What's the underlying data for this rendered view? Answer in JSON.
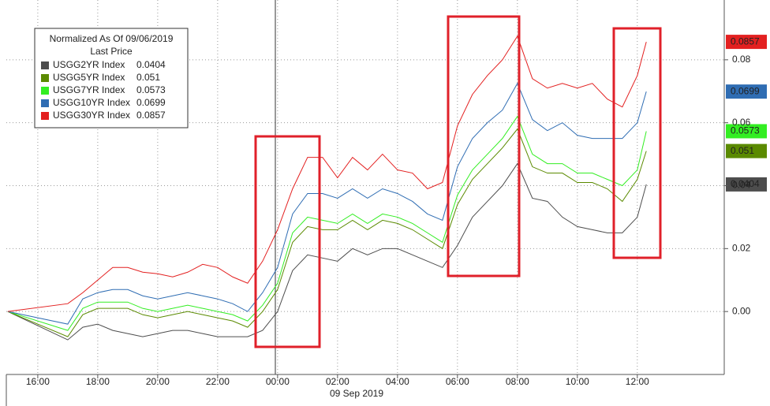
{
  "chart_data": {
    "type": "line",
    "legend_title": "Normalized As Of 09/06/2019",
    "legend_subtitle": "Last Price",
    "date_label": "09 Sep 2019",
    "x": [
      -1,
      1,
      1.5,
      2,
      2.5,
      3,
      3.5,
      4,
      4.5,
      5,
      5.5,
      6,
      6.5,
      7,
      7.5,
      8,
      8.5,
      9,
      9.5,
      10,
      10.5,
      11,
      11.5,
      12,
      12.5,
      13,
      13.5,
      14,
      14.5,
      15,
      15.5,
      16,
      16.5,
      17,
      17.5,
      18,
      18.5,
      19,
      19.5,
      20,
      20.3
    ],
    "series": [
      {
        "name": "USGG2YR Index",
        "color": "#4d4d4d",
        "tag_text": "#ffffff",
        "values": [
          0,
          -0.009,
          -0.005,
          -0.004,
          -0.006,
          -0.007,
          -0.008,
          -0.007,
          -0.006,
          -0.006,
          -0.007,
          -0.008,
          -0.008,
          -0.008,
          -0.006,
          0.0,
          0.013,
          0.018,
          0.017,
          0.016,
          0.02,
          0.018,
          0.02,
          0.02,
          0.018,
          0.016,
          0.014,
          0.021,
          0.03,
          0.035,
          0.04,
          0.047,
          0.036,
          0.035,
          0.03,
          0.027,
          0.026,
          0.025,
          0.025,
          0.03,
          0.0404
        ]
      },
      {
        "name": "USGG5YR Index",
        "color": "#5a8a00",
        "tag_text": "#ffffff",
        "values": [
          0,
          -0.008,
          -0.001,
          0.001,
          0.001,
          0.001,
          -0.001,
          -0.002,
          -0.001,
          0.0,
          -0.001,
          -0.002,
          -0.003,
          -0.005,
          0.0,
          0.007,
          0.022,
          0.027,
          0.026,
          0.026,
          0.029,
          0.026,
          0.029,
          0.028,
          0.026,
          0.023,
          0.02,
          0.034,
          0.042,
          0.047,
          0.052,
          0.058,
          0.046,
          0.044,
          0.044,
          0.041,
          0.041,
          0.039,
          0.035,
          0.042,
          0.051
        ]
      },
      {
        "name": "USGG7YR Index",
        "color": "#33ee22",
        "tag_text": "#000000",
        "values": [
          0,
          -0.006,
          0.001,
          0.003,
          0.003,
          0.003,
          0.001,
          0.0,
          0.001,
          0.002,
          0.001,
          0.0,
          -0.001,
          -0.003,
          0.002,
          0.009,
          0.025,
          0.03,
          0.029,
          0.028,
          0.031,
          0.028,
          0.031,
          0.03,
          0.028,
          0.025,
          0.022,
          0.037,
          0.045,
          0.05,
          0.055,
          0.062,
          0.05,
          0.047,
          0.047,
          0.044,
          0.044,
          0.042,
          0.04,
          0.045,
          0.0573
        ]
      },
      {
        "name": "USGG10YR Index",
        "color": "#2f6db3",
        "tag_text": "#ffffff",
        "values": [
          0,
          -0.004,
          0.004,
          0.006,
          0.007,
          0.007,
          0.005,
          0.004,
          0.005,
          0.006,
          0.005,
          0.004,
          0.0025,
          0,
          0.006,
          0.014,
          0.031,
          0.0375,
          0.0375,
          0.036,
          0.039,
          0.036,
          0.039,
          0.0375,
          0.035,
          0.031,
          0.029,
          0.046,
          0.055,
          0.06,
          0.064,
          0.0725,
          0.061,
          0.0575,
          0.06,
          0.056,
          0.055,
          0.055,
          0.055,
          0.06,
          0.0699
        ]
      },
      {
        "name": "USGG30YR Index",
        "color": "#e32020",
        "tag_text": "#ffffff",
        "values": [
          0,
          0.0025,
          0.006,
          0.01,
          0.014,
          0.014,
          0.0125,
          0.012,
          0.011,
          0.0125,
          0.015,
          0.014,
          0.011,
          0.009,
          0.016,
          0.026,
          0.039,
          0.049,
          0.049,
          0.0425,
          0.049,
          0.045,
          0.05,
          0.045,
          0.044,
          0.039,
          0.041,
          0.059,
          0.069,
          0.075,
          0.08,
          0.0875,
          0.074,
          0.071,
          0.0725,
          0.071,
          0.0725,
          0.0675,
          0.065,
          0.075,
          0.0857
        ]
      }
    ],
    "xlim": [
      -1.05,
      22.9
    ],
    "xticks": [
      {
        "value": 0,
        "label": "16:00"
      },
      {
        "value": 2,
        "label": "18:00"
      },
      {
        "value": 4,
        "label": "20:00"
      },
      {
        "value": 6,
        "label": "22:00"
      },
      {
        "value": 8,
        "label": "00:00"
      },
      {
        "value": 10,
        "label": "02:00"
      },
      {
        "value": 12,
        "label": "04:00"
      },
      {
        "value": 14,
        "label": "06:00"
      },
      {
        "value": 16,
        "label": "08:00"
      },
      {
        "value": 18,
        "label": "10:00"
      },
      {
        "value": 20,
        "label": "12:00"
      }
    ],
    "ylim": [
      -0.02,
      0.099
    ],
    "yticks": [
      {
        "value": 0,
        "label": "0.00"
      },
      {
        "value": 0.02,
        "label": "0.02"
      },
      {
        "value": 0.04,
        "label": "0.04"
      },
      {
        "value": 0.06,
        "label": "0.06"
      },
      {
        "value": 0.08,
        "label": "0.08"
      }
    ],
    "grid": true
  }
}
